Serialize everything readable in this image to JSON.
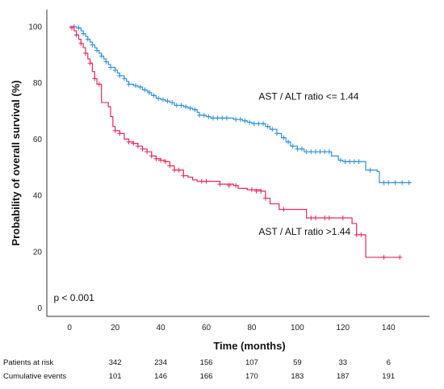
{
  "chart_data": {
    "type": "line",
    "subtype": "kaplan-meier",
    "xlabel": "Time (months)",
    "ylabel": "Probability of overall survival (%)",
    "xlim": [
      -10,
      158
    ],
    "ylim": [
      -3,
      106
    ],
    "xticks": [
      0,
      20,
      40,
      60,
      80,
      100,
      120,
      140
    ],
    "yticks": [
      0,
      20,
      40,
      60,
      80,
      100
    ],
    "grid": false,
    "series": [
      {
        "name": "AST / ALT ratio <= 1.44",
        "color": "#2e8fe0",
        "steps": [
          [
            0,
            100
          ],
          [
            3,
            99.5
          ],
          [
            5,
            98.5
          ],
          [
            6,
            97.5
          ],
          [
            7,
            96.5
          ],
          [
            8,
            95.5
          ],
          [
            9,
            94.5
          ],
          [
            10,
            93.5
          ],
          [
            11,
            92.5
          ],
          [
            12,
            91.5
          ],
          [
            13,
            90.5
          ],
          [
            14,
            89.5
          ],
          [
            15,
            88.5
          ],
          [
            16,
            87.5
          ],
          [
            17,
            86.5
          ],
          [
            18,
            85.5
          ],
          [
            20,
            84.5
          ],
          [
            21,
            83.5
          ],
          [
            22,
            82.5
          ],
          [
            24,
            81.5
          ],
          [
            25,
            80.5
          ],
          [
            26,
            79.5
          ],
          [
            28,
            79
          ],
          [
            30,
            78.5
          ],
          [
            32,
            77.5
          ],
          [
            34,
            77
          ],
          [
            35,
            76.5
          ],
          [
            36,
            75.5
          ],
          [
            38,
            74.5
          ],
          [
            40,
            74
          ],
          [
            42,
            73.5
          ],
          [
            44,
            73
          ],
          [
            46,
            72
          ],
          [
            50,
            71.5
          ],
          [
            52,
            71
          ],
          [
            54,
            70.5
          ],
          [
            56,
            69.5
          ],
          [
            57,
            68.5
          ],
          [
            60,
            68
          ],
          [
            62,
            67.5
          ],
          [
            66,
            67.5
          ],
          [
            72,
            67
          ],
          [
            76,
            66.5
          ],
          [
            78,
            66
          ],
          [
            80,
            65.5
          ],
          [
            86,
            64.5
          ],
          [
            88,
            63.5
          ],
          [
            91,
            62
          ],
          [
            93,
            60.5
          ],
          [
            95,
            59
          ],
          [
            97,
            57.5
          ],
          [
            100,
            56.5
          ],
          [
            103,
            55.5
          ],
          [
            107,
            55.5
          ],
          [
            115,
            54
          ],
          [
            118,
            52.5
          ],
          [
            120,
            52
          ],
          [
            128,
            52
          ],
          [
            130,
            49
          ],
          [
            135,
            48.5
          ],
          [
            136,
            44.5
          ],
          [
            150,
            44.5
          ]
        ],
        "censored": [
          [
            2,
            100
          ],
          [
            4,
            99.5
          ],
          [
            6,
            97.5
          ],
          [
            8,
            95.5
          ],
          [
            10,
            93.5
          ],
          [
            12,
            91.5
          ],
          [
            14,
            89.5
          ],
          [
            16,
            87.5
          ],
          [
            18,
            85.5
          ],
          [
            20,
            84.5
          ],
          [
            22,
            82.5
          ],
          [
            24,
            81.5
          ],
          [
            26,
            79.5
          ],
          [
            29,
            79
          ],
          [
            31,
            78.5
          ],
          [
            33,
            77.5
          ],
          [
            35,
            76.5
          ],
          [
            37,
            75.5
          ],
          [
            39,
            74.5
          ],
          [
            41,
            74
          ],
          [
            43,
            73.5
          ],
          [
            45,
            73
          ],
          [
            47,
            72
          ],
          [
            49,
            72
          ],
          [
            51,
            71.5
          ],
          [
            53,
            71
          ],
          [
            55,
            70.5
          ],
          [
            57,
            68.5
          ],
          [
            59,
            68.5
          ],
          [
            61,
            68
          ],
          [
            63,
            67.5
          ],
          [
            65,
            67.5
          ],
          [
            67,
            67.5
          ],
          [
            69,
            67.5
          ],
          [
            73,
            67
          ],
          [
            75,
            67
          ],
          [
            77,
            66.5
          ],
          [
            79,
            66
          ],
          [
            81,
            65.5
          ],
          [
            83,
            65.5
          ],
          [
            85,
            65.5
          ],
          [
            87,
            64.5
          ],
          [
            89,
            63.5
          ],
          [
            91,
            62
          ],
          [
            94,
            60.5
          ],
          [
            96,
            59
          ],
          [
            98,
            57.5
          ],
          [
            100,
            56.5
          ],
          [
            102,
            56.5
          ],
          [
            104,
            55.5
          ],
          [
            106,
            55.5
          ],
          [
            108,
            55.5
          ],
          [
            110,
            55.5
          ],
          [
            112,
            55.5
          ],
          [
            114,
            55.5
          ],
          [
            119,
            52.5
          ],
          [
            121,
            52
          ],
          [
            123,
            52
          ],
          [
            125,
            52
          ],
          [
            127,
            52
          ],
          [
            132,
            49
          ],
          [
            138,
            44.5
          ],
          [
            140,
            44.5
          ],
          [
            143,
            44.5
          ],
          [
            146,
            44.5
          ],
          [
            149,
            44.5
          ]
        ]
      },
      {
        "name": "AST / ALT ratio >1.44",
        "color": "#e8295a",
        "steps": [
          [
            0,
            100
          ],
          [
            2,
            98.5
          ],
          [
            3,
            97
          ],
          [
            4,
            95.5
          ],
          [
            5,
            94
          ],
          [
            6,
            92.5
          ],
          [
            7,
            90.5
          ],
          [
            8,
            88.5
          ],
          [
            9,
            87
          ],
          [
            10,
            84
          ],
          [
            11,
            81.5
          ],
          [
            12,
            79.5
          ],
          [
            14,
            73
          ],
          [
            17,
            71.5
          ],
          [
            18,
            68
          ],
          [
            19,
            64.5
          ],
          [
            20,
            63
          ],
          [
            22,
            62
          ],
          [
            24,
            60
          ],
          [
            26,
            59
          ],
          [
            28,
            58.5
          ],
          [
            30,
            57.5
          ],
          [
            32,
            56.5
          ],
          [
            34,
            55.5
          ],
          [
            36,
            54
          ],
          [
            38,
            53
          ],
          [
            40,
            52.5
          ],
          [
            42,
            52
          ],
          [
            44,
            50.5
          ],
          [
            46,
            49
          ],
          [
            50,
            47
          ],
          [
            52,
            46.5
          ],
          [
            54,
            45.5
          ],
          [
            56,
            45
          ],
          [
            66,
            44
          ],
          [
            72,
            43.5
          ],
          [
            74,
            42.5
          ],
          [
            78,
            42
          ],
          [
            84,
            41.5
          ],
          [
            86,
            39
          ],
          [
            88,
            37
          ],
          [
            92,
            35
          ],
          [
            104,
            32
          ],
          [
            116,
            32
          ],
          [
            124,
            30
          ],
          [
            126,
            26
          ],
          [
            130,
            18
          ],
          [
            145,
            18
          ]
        ],
        "censored": [
          [
            1,
            99.5
          ],
          [
            3,
            97
          ],
          [
            5,
            94
          ],
          [
            7,
            90.5
          ],
          [
            9,
            87
          ],
          [
            11,
            81.5
          ],
          [
            13,
            79.5
          ],
          [
            20,
            63
          ],
          [
            22,
            62
          ],
          [
            26,
            59
          ],
          [
            28,
            58.5
          ],
          [
            30,
            57.5
          ],
          [
            32,
            56.5
          ],
          [
            34,
            55.5
          ],
          [
            36,
            54
          ],
          [
            38,
            53
          ],
          [
            40,
            52.5
          ],
          [
            42,
            52
          ],
          [
            44,
            50.5
          ],
          [
            46,
            49
          ],
          [
            48,
            49
          ],
          [
            50,
            47
          ],
          [
            58,
            45
          ],
          [
            60,
            45
          ],
          [
            66,
            44
          ],
          [
            70,
            43.5
          ],
          [
            73,
            43.5
          ],
          [
            80,
            42
          ],
          [
            82,
            41.5
          ],
          [
            84,
            41.5
          ],
          [
            86,
            39
          ],
          [
            94,
            35
          ],
          [
            106,
            32
          ],
          [
            108,
            32
          ],
          [
            112,
            32
          ],
          [
            114,
            32
          ],
          [
            120,
            32
          ],
          [
            126,
            26
          ],
          [
            128,
            26
          ],
          [
            138,
            18
          ],
          [
            145,
            18
          ]
        ]
      }
    ],
    "annotations": [
      {
        "text": "AST / ALT ratio <= 1.44",
        "x": 83,
        "y": 74
      },
      {
        "text": "AST / ALT ratio >1.44",
        "x": 83,
        "y": 26
      },
      {
        "text": "p < 0.001",
        "x": -7,
        "y": 2.5
      }
    ],
    "risk_table": {
      "rows": [
        {
          "label": "Patients at risk",
          "values": [
            342,
            234,
            156,
            107,
            59,
            33,
            6
          ]
        },
        {
          "label": "Cumulative events",
          "values": [
            101,
            146,
            166,
            170,
            183,
            187,
            191
          ]
        }
      ],
      "times": [
        20,
        40,
        60,
        80,
        100,
        120,
        140
      ]
    }
  }
}
